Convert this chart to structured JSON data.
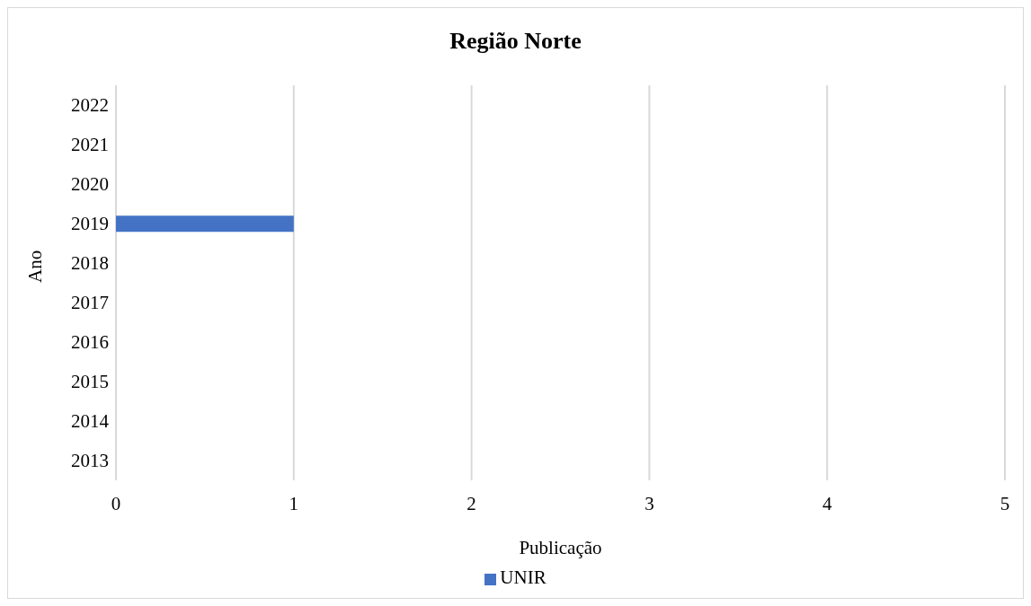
{
  "chart_data": {
    "type": "bar",
    "orientation": "horizontal",
    "title": "Região Norte",
    "xlabel": "Publicação",
    "ylabel": "Ano",
    "categories": [
      "2022",
      "2021",
      "2020",
      "2019",
      "2018",
      "2017",
      "2016",
      "2015",
      "2014",
      "2013"
    ],
    "series": [
      {
        "name": "UNIR",
        "color": "#4472c4",
        "values": [
          0,
          0,
          0,
          1,
          0,
          0,
          0,
          0,
          0,
          0
        ]
      }
    ],
    "xlim": [
      0,
      5
    ],
    "xticks": [
      0,
      1,
      2,
      3,
      4,
      5
    ],
    "grid": "x",
    "legend": "bottom"
  }
}
